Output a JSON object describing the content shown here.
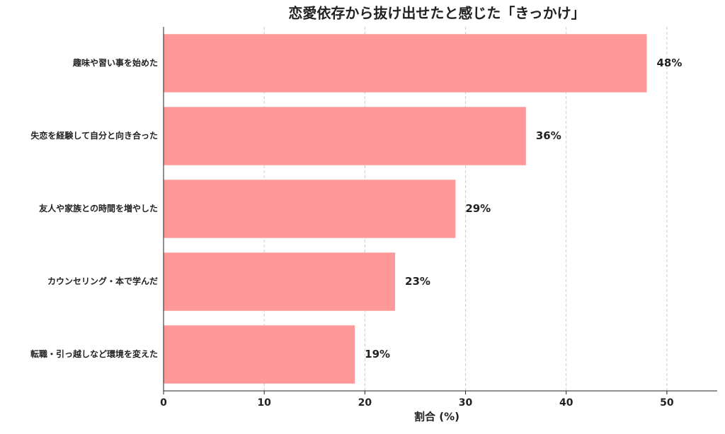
{
  "chart_data": {
    "type": "barh",
    "title": "恋愛依存から抜け出せたと感じた「きっかけ」",
    "categories": [
      "趣味や習い事を始めた",
      "失恋を経験して自分と向き合った",
      "友人や家族との時間を増やした",
      "カウンセリング・本で学んだ",
      "転職・引っ越しなど環境を変えた"
    ],
    "values": [
      48,
      36,
      29,
      23,
      19
    ],
    "value_labels": [
      "48%",
      "36%",
      "29%",
      "23%",
      "19%"
    ],
    "color": "#ff9999",
    "xlabel": "割合 (%)",
    "xlim": [
      0,
      55
    ],
    "xticks": [
      0,
      10,
      20,
      30,
      40,
      50
    ],
    "grid": true
  }
}
